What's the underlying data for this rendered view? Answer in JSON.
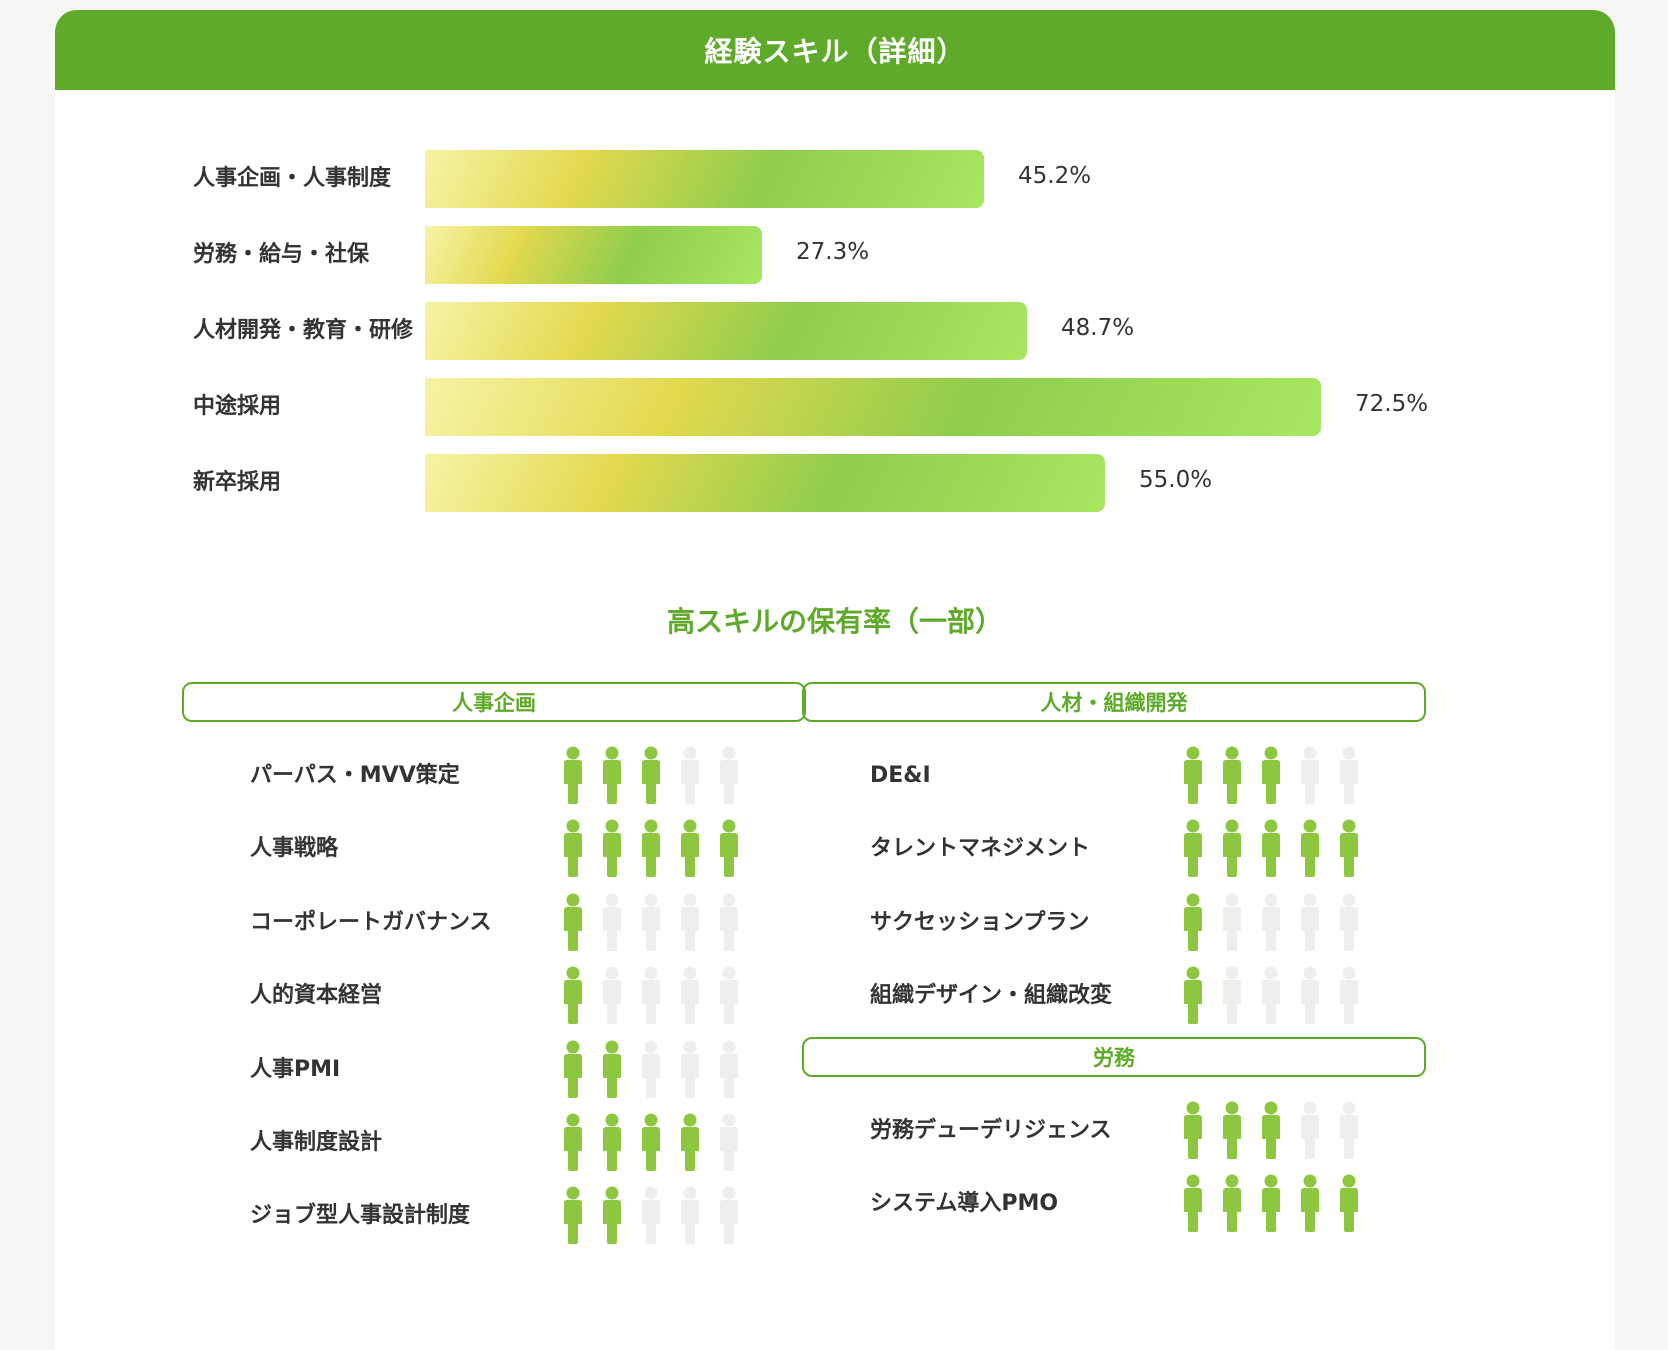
{
  "header": {
    "title": "経験スキル（詳細）"
  },
  "chart_data": {
    "type": "bar",
    "orientation": "horizontal",
    "categories": [
      "人事企画・人事制度",
      "労務・給与・社保",
      "人材開発・教育・研修",
      "中途採用",
      "新卒採用"
    ],
    "values": [
      45.2,
      27.3,
      48.7,
      72.5,
      55.0
    ],
    "value_labels": [
      "45.2%",
      "27.3%",
      "48.7%",
      "72.5%",
      "55.0%"
    ],
    "unit": "%",
    "xlim": [
      0,
      100
    ]
  },
  "skills_section": {
    "title": "高スキルの保有率（一部）",
    "max_icons": 5,
    "colors": {
      "on": "#8dc63f",
      "off": "#eeeeee"
    },
    "panels": [
      {
        "name": "人事企画",
        "rows": [
          {
            "label": "パーパス・MVV策定",
            "level": 3
          },
          {
            "label": "人事戦略",
            "level": 5
          },
          {
            "label": "コーポレートガバナンス",
            "level": 1
          },
          {
            "label": "人的資本経営",
            "level": 1
          },
          {
            "label": "人事PMI",
            "level": 2
          },
          {
            "label": "人事制度設計",
            "level": 4
          },
          {
            "label": "ジョブ型人事設計制度",
            "level": 2
          }
        ]
      },
      {
        "name": "人材・組織開発",
        "rows": [
          {
            "label": "DE&I",
            "level": 3
          },
          {
            "label": "タレントマネジメント",
            "level": 5
          },
          {
            "label": "サクセッションプラン",
            "level": 1
          },
          {
            "label": "組織デザイン・組織改変",
            "level": 1
          }
        ]
      },
      {
        "name": "労務",
        "rows": [
          {
            "label": "労務デューデリジェンス",
            "level": 3
          },
          {
            "label": "システム導入PMO",
            "level": 5
          }
        ]
      }
    ]
  }
}
